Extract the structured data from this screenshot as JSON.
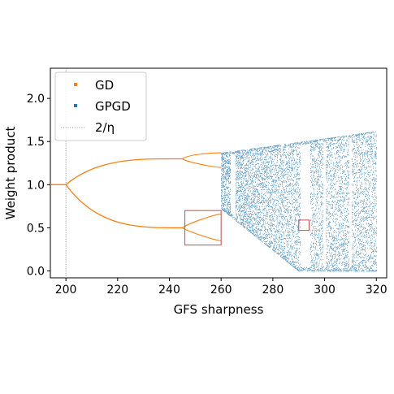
{
  "chart_data": {
    "type": "scatter",
    "xlabel": "GFS sharpness",
    "ylabel": "Weight product",
    "xlim": [
      194,
      324
    ],
    "ylim": [
      -0.08,
      2.35
    ],
    "xticks": [
      200,
      220,
      240,
      260,
      280,
      300,
      320
    ],
    "yticks": [
      0.0,
      0.5,
      1.0,
      1.5,
      2.0
    ],
    "xtick_labels": [
      "200",
      "220",
      "240",
      "260",
      "280",
      "300",
      "320"
    ],
    "ytick_labels": [
      "0.0",
      "0.5",
      "1.0",
      "1.5",
      "2.0"
    ],
    "grid": false,
    "legend_position": "top-left",
    "threshold_line": {
      "name": "2/η",
      "x": 200,
      "style": "dotted",
      "color": "#808080"
    },
    "series": [
      {
        "name": "GD",
        "color": "#ff7f0e",
        "kind": "bifurcation-branches"
      },
      {
        "name": "GPGD",
        "color": "#1f77b4",
        "kind": "bifurcation-scatter"
      }
    ],
    "bifurcation": {
      "fixed_point_y": 1.0,
      "first_split_x": 200,
      "branch_upper_at_245": 1.3,
      "branch_lower_at_245": 0.5,
      "second_split_x": 245,
      "chaos_onset_x": 260,
      "chaos_upper_at_320": 1.62,
      "chaos_lower_at_320": 0.0,
      "periodic_windows_x": [
        262,
        265,
        291,
        293,
        300,
        310
      ]
    },
    "zoom_boxes": [
      {
        "x": [
          246,
          260
        ],
        "y": [
          0.3,
          0.7
        ],
        "color": "#c0504d"
      },
      {
        "x": [
          290,
          294
        ],
        "y": [
          0.47,
          0.59
        ],
        "color": "#c0504d"
      }
    ]
  },
  "legend": {
    "gd_label": "GD",
    "gpgd_label": "GPGD",
    "threshold_label": "2/η"
  }
}
